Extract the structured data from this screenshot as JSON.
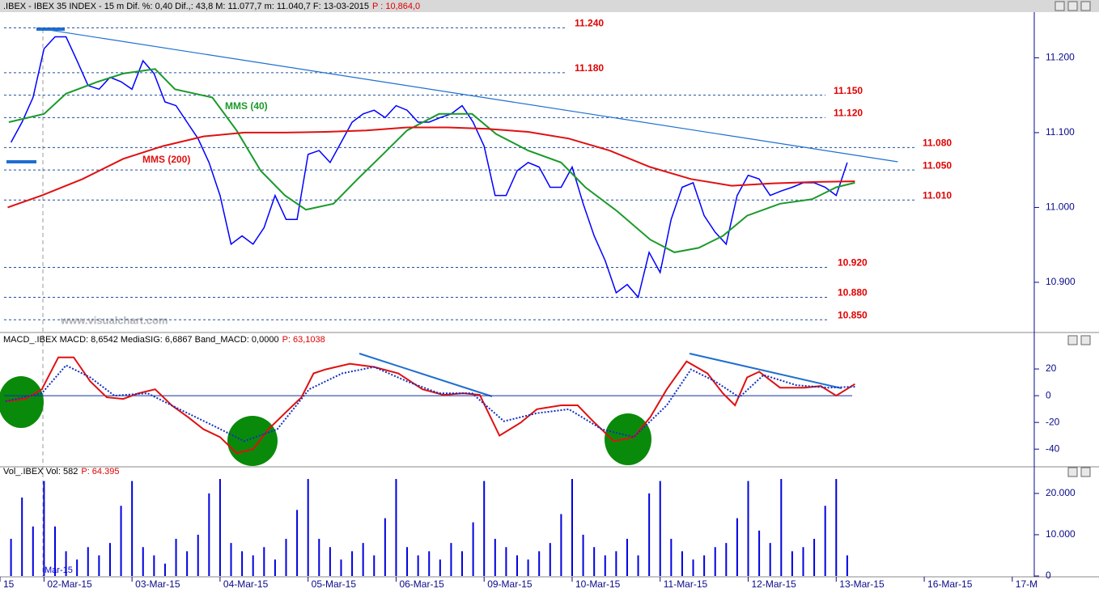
{
  "chart_data": [
    {
      "type": "line",
      "title": ".IBEX - IBEX 35 INDEX -  15 m Dif. %: 0,40 Dif.,: 43,8 M: 11.077,7 m: 11.040,7 F: 13-03-2015",
      "title_value": "P : 10,864,0",
      "watermark": "www.visualchart.com",
      "xlim": [
        -4,
        90
      ],
      "ylim": [
        10834,
        11261
      ],
      "yticks": [
        {
          "value": 11200,
          "label": "11.200"
        },
        {
          "value": 11100,
          "label": "11.100"
        },
        {
          "value": 11000,
          "label": "11.000"
        },
        {
          "value": 10900,
          "label": "10.900"
        }
      ],
      "x": [
        -3,
        -2,
        -1,
        0,
        1,
        2,
        3,
        4,
        5,
        6,
        7,
        8,
        9,
        10,
        11,
        12,
        13,
        14,
        15,
        16,
        17,
        18,
        19,
        20,
        21,
        22,
        23,
        24,
        25,
        26,
        27,
        28,
        29,
        30,
        31,
        32,
        33,
        34,
        35,
        36,
        37,
        38,
        39,
        40,
        41,
        42,
        43,
        44,
        45,
        46,
        47,
        48,
        49,
        50,
        51,
        52,
        53,
        54,
        55,
        56,
        57,
        58,
        59,
        60,
        61,
        62,
        63,
        64,
        65,
        66,
        67,
        68,
        69,
        70,
        71,
        72,
        73
      ],
      "series": [
        {
          "color": "#0000ff",
          "values": [
            11087,
            11114,
            11147,
            11212,
            11228,
            11228,
            11196,
            11163,
            11158,
            11174,
            11168,
            11158,
            11196,
            11179,
            11141,
            11136,
            11114,
            11092,
            11060,
            11016,
            10951,
            10962,
            10951,
            10973,
            11016,
            10984,
            10984,
            11071,
            11076,
            11060,
            11087,
            11114,
            11125,
            11130,
            11120,
            11136,
            11130,
            11114,
            11114,
            11120,
            11125,
            11136,
            11114,
            11082,
            11016,
            11016,
            11049,
            11060,
            11054,
            11027,
            11027,
            11054,
            11005,
            10962,
            10929,
            10886,
            10897,
            10880,
            10940,
            10913,
            10984,
            11027,
            11033,
            10989,
            10967,
            10951,
            11016,
            11043,
            11038,
            11016,
            11022,
            11027,
            11033,
            11033,
            11027,
            11016,
            11060
          ]
        },
        {
          "name": "MMS (40)",
          "color": "#1a9a2a",
          "x": [
            -3.2,
            0,
            2,
            4.9,
            7.2,
            10.1,
            11.9,
            15.3,
            17.5,
            19.7,
            21.9,
            23.8,
            26.3,
            28.5,
            30.8,
            33,
            35.9,
            38.9,
            41.1,
            44,
            47,
            49.2,
            52.1,
            55.1,
            57.3,
            59.5,
            61.7,
            63.9,
            66.9,
            69.8,
            72,
            73.7
          ],
          "values": [
            11114,
            11125,
            11152,
            11168,
            11179,
            11185,
            11158,
            11147,
            11103,
            11049,
            11016,
            10997,
            11005,
            11038,
            11071,
            11103,
            11125,
            11125,
            11098,
            11076,
            11060,
            11027,
            10995,
            10957,
            10940,
            10946,
            10962,
            10989,
            11005,
            11011,
            11027,
            11033
          ]
        },
        {
          "name": "MMS (200)",
          "color": "#e01010",
          "x": [
            -3.3,
            -0.2,
            3.5,
            7.2,
            10.8,
            14.5,
            18.2,
            21.9,
            25.6,
            29.3,
            33,
            36.7,
            40.3,
            44,
            47.7,
            51.4,
            55.1,
            58.8,
            62.5,
            66.1,
            69.8,
            73.7
          ],
          "values": [
            11000,
            11016,
            11038,
            11065,
            11082,
            11095,
            11100,
            11100,
            11101,
            11103,
            11107,
            11107,
            11105,
            11101,
            11092,
            11076,
            11054,
            11038,
            11029,
            11032,
            11034,
            11035
          ]
        }
      ],
      "levels": [
        {
          "value": 11240,
          "label": "11.240"
        },
        {
          "value": 11180,
          "label": "11.180"
        },
        {
          "value": 11150,
          "label": "11.150"
        },
        {
          "value": 11120,
          "label": "11.120"
        },
        {
          "value": 11080,
          "label": "11.080"
        },
        {
          "value": 11050,
          "label": "11.050"
        },
        {
          "value": 11010,
          "label": "11.010"
        },
        {
          "value": 10920,
          "label": "10.920"
        },
        {
          "value": 10880,
          "label": "10.880"
        },
        {
          "value": 10850,
          "label": "10.850"
        }
      ],
      "trendline": {
        "x": [
          0.5,
          77.6
        ],
        "y": [
          11237,
          11061
        ]
      }
    },
    {
      "type": "line",
      "title": "MACD_.IBEX MACD: 8,6542 MediaSIG: 6,6867 Band_MACD: 0,0000",
      "title_value": "P: 63,1038",
      "xlim": [
        -4,
        90
      ],
      "ylim": [
        -52,
        37.6
      ],
      "yticks": [
        20,
        0,
        -20,
        -40
      ],
      "zero_line": true,
      "series": [
        {
          "color": "#e01010",
          "x": [
            -3.5,
            -1.7,
            -0.2,
            1.3,
            2.7,
            4.2,
            5.7,
            7.2,
            8.6,
            10.1,
            11.6,
            13.1,
            14.5,
            16,
            17.5,
            19,
            20.4,
            21.9,
            23.4,
            24.5,
            25.6,
            27.8,
            30,
            32.2,
            34.4,
            36.3,
            38.1,
            39.6,
            41.4,
            43.3,
            44.8,
            47,
            48.5,
            49.9,
            51.8,
            53.6,
            55.1,
            56.6,
            58.4,
            60.3,
            61.7,
            62.8,
            63.9,
            65,
            66.9,
            69.1,
            70.6,
            72,
            73.7
          ],
          "values": [
            -4.2,
            -2.4,
            4.8,
            28.7,
            28.7,
            10.7,
            -1.2,
            -2.4,
            1.8,
            4.8,
            -7.2,
            -16.1,
            -25.1,
            -31,
            -43,
            -40,
            -25.1,
            -13.1,
            -1.2,
            16.7,
            19.7,
            23.9,
            21.5,
            16.7,
            4.8,
            0.6,
            1.8,
            0.6,
            -29.9,
            -20.3,
            -10.1,
            -7.2,
            -7.2,
            -19.1,
            -34,
            -31,
            -16.1,
            4.8,
            25.7,
            16.7,
            1.8,
            -7.2,
            13.7,
            17.9,
            6,
            6,
            7.2,
            0,
            8.7
          ]
        },
        {
          "color": "#1030c0",
          "dashed": true,
          "x": [
            -3.5,
            -0.2,
            2,
            4.2,
            6.4,
            9.4,
            12.3,
            15.3,
            18.2,
            21.2,
            24.1,
            27.1,
            30,
            33,
            35.9,
            38.9,
            41.8,
            44.8,
            47.7,
            50.7,
            53.6,
            56.6,
            58.8,
            61,
            63.2,
            65.4,
            68.4,
            71.3,
            73.7
          ],
          "values": [
            -4.2,
            1.8,
            22.7,
            13.7,
            0,
            1.8,
            -10.1,
            -22.1,
            -34,
            -25.1,
            4.8,
            16.7,
            21.5,
            10.7,
            1.8,
            1.8,
            -19.1,
            -13.1,
            -10.1,
            -25.1,
            -31,
            -7.2,
            19.7,
            10.7,
            -1.2,
            15.5,
            7.8,
            6,
            6.7
          ]
        }
      ]
    },
    {
      "type": "bar",
      "title": "Vol_.IBEX Vol: 582",
      "title_value": "P: 64.395",
      "annotation": "Mar-15",
      "color": "#0000e0",
      "xlim": [
        -4,
        90
      ],
      "ylim": [
        0,
        23900
      ],
      "yticks": [
        {
          "value": 20000,
          "label": "20.000"
        },
        {
          "value": 10000,
          "label": "10.000"
        },
        0
      ],
      "xticks": [
        {
          "value": -4,
          "label": "15"
        },
        {
          "value": 0,
          "label": "02-Mar-15"
        },
        {
          "value": 8,
          "label": "03-Mar-15"
        },
        {
          "value": 16,
          "label": "04-Mar-15"
        },
        {
          "value": 24,
          "label": "05-Mar-15"
        },
        {
          "value": 32,
          "label": "06-Mar-15"
        },
        {
          "value": 40,
          "label": "09-Mar-15"
        },
        {
          "value": 48,
          "label": "10-Mar-15"
        },
        {
          "value": 56,
          "label": "11-Mar-15"
        },
        {
          "value": 64,
          "label": "12-Mar-15"
        },
        {
          "value": 72,
          "label": "13-Mar-15"
        },
        {
          "value": 80,
          "label": "16-Mar-15"
        },
        {
          "value": 88,
          "label": "17-M"
        }
      ],
      "x": [
        -3,
        -2,
        -1,
        0,
        1,
        2,
        3,
        4,
        5,
        6,
        7,
        8,
        9,
        10,
        11,
        12,
        13,
        14,
        15,
        16,
        17,
        18,
        19,
        20,
        21,
        22,
        23,
        24,
        25,
        26,
        27,
        28,
        29,
        30,
        31,
        32,
        33,
        34,
        35,
        36,
        37,
        38,
        39,
        40,
        41,
        42,
        43,
        44,
        45,
        46,
        47,
        48,
        49,
        50,
        51,
        52,
        53,
        54,
        55,
        56,
        57,
        58,
        59,
        60,
        61,
        62,
        63,
        64,
        65,
        66,
        67,
        68,
        69,
        70,
        71,
        72,
        73
      ],
      "values": [
        9000,
        19000,
        12000,
        23000,
        12000,
        6000,
        4000,
        7000,
        5000,
        8000,
        17000,
        23000,
        7000,
        5000,
        3000,
        9000,
        6000,
        10000,
        20000,
        23500,
        8000,
        6000,
        5000,
        7000,
        4000,
        9000,
        16000,
        23500,
        9000,
        7000,
        4000,
        6000,
        8000,
        5000,
        14000,
        23500,
        7000,
        5000,
        6000,
        4000,
        8000,
        6000,
        13000,
        23000,
        9000,
        7000,
        5000,
        4000,
        6000,
        8000,
        15000,
        23500,
        10000,
        7000,
        5000,
        6000,
        9000,
        5000,
        20000,
        23000,
        9000,
        6000,
        4000,
        5000,
        7000,
        8000,
        14000,
        23000,
        11000,
        8000,
        23500,
        6000,
        7000,
        9000,
        17000,
        23500,
        5000
      ]
    }
  ]
}
